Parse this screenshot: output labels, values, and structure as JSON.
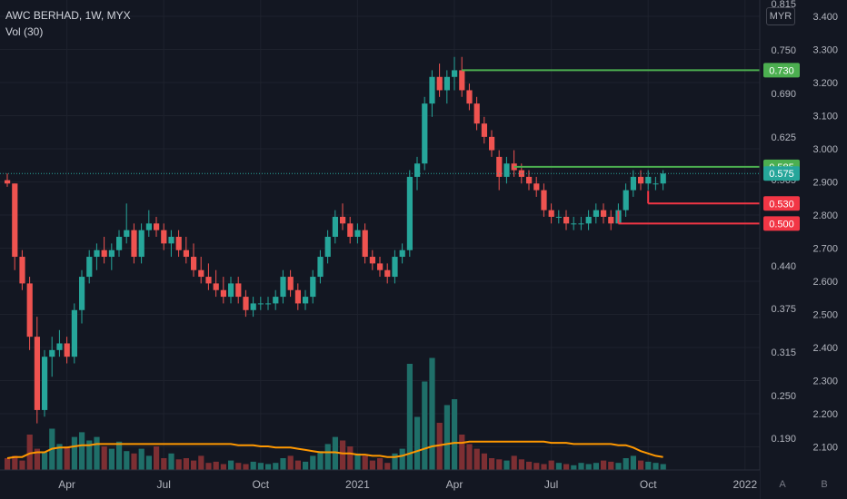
{
  "header": {
    "title": "AWC BERHAD, 1W, MYX",
    "indicator": "Vol (30)",
    "currency": "MYR"
  },
  "corner_buttons": {
    "auto": "A",
    "log": "B"
  },
  "colors": {
    "background": "#131722",
    "up": "#26a69a",
    "down": "#ef5350",
    "volume_up": "#1f6f69",
    "volume_down": "#7d2f33",
    "volume_ma": "#ff9800",
    "support": "#f23645",
    "resistance": "#4caf50",
    "last_price": "#26a69a"
  },
  "chart_data": {
    "type": "candlestick",
    "title": "AWC BERHAD, 1W, MYX",
    "x_tick_labels": [
      "Apr",
      "Jul",
      "Oct",
      "2021",
      "Apr",
      "Jul",
      "Oct",
      "2022"
    ],
    "x_tick_weeks": [
      8,
      21,
      34,
      47,
      60,
      73,
      86,
      99
    ],
    "right_axis_labels": [
      "3.400",
      "3.300",
      "3.200",
      "3.100",
      "3.000",
      "2.900",
      "2.800",
      "2.700",
      "2.600",
      "2.500",
      "2.400",
      "2.300",
      "2.200",
      "2.100"
    ],
    "left_axis_labels": [
      "0.815",
      "0.750",
      "0.690",
      "0.625",
      "0.565",
      "0.440",
      "0.375",
      "0.315",
      "0.250",
      "0.190"
    ],
    "ylim": [
      0.13,
      0.83
    ],
    "candles": [
      [
        0.565,
        0.575,
        0.555,
        0.56
      ],
      [
        0.56,
        0.56,
        0.43,
        0.45
      ],
      [
        0.45,
        0.46,
        0.4,
        0.41
      ],
      [
        0.41,
        0.42,
        0.31,
        0.33
      ],
      [
        0.33,
        0.36,
        0.2,
        0.22
      ],
      [
        0.22,
        0.31,
        0.21,
        0.3
      ],
      [
        0.3,
        0.33,
        0.27,
        0.31
      ],
      [
        0.31,
        0.34,
        0.3,
        0.32
      ],
      [
        0.32,
        0.33,
        0.29,
        0.3
      ],
      [
        0.3,
        0.38,
        0.29,
        0.37
      ],
      [
        0.37,
        0.43,
        0.35,
        0.42
      ],
      [
        0.42,
        0.46,
        0.41,
        0.45
      ],
      [
        0.45,
        0.47,
        0.43,
        0.46
      ],
      [
        0.46,
        0.48,
        0.44,
        0.45
      ],
      [
        0.45,
        0.47,
        0.43,
        0.46
      ],
      [
        0.46,
        0.49,
        0.45,
        0.48
      ],
      [
        0.48,
        0.53,
        0.47,
        0.49
      ],
      [
        0.49,
        0.5,
        0.44,
        0.45
      ],
      [
        0.45,
        0.5,
        0.44,
        0.49
      ],
      [
        0.49,
        0.52,
        0.48,
        0.5
      ],
      [
        0.5,
        0.51,
        0.48,
        0.49
      ],
      [
        0.49,
        0.5,
        0.46,
        0.47
      ],
      [
        0.47,
        0.49,
        0.45,
        0.48
      ],
      [
        0.48,
        0.49,
        0.45,
        0.46
      ],
      [
        0.46,
        0.48,
        0.44,
        0.45
      ],
      [
        0.45,
        0.47,
        0.42,
        0.43
      ],
      [
        0.43,
        0.45,
        0.41,
        0.42
      ],
      [
        0.42,
        0.44,
        0.4,
        0.41
      ],
      [
        0.41,
        0.43,
        0.39,
        0.4
      ],
      [
        0.4,
        0.42,
        0.38,
        0.39
      ],
      [
        0.39,
        0.42,
        0.38,
        0.41
      ],
      [
        0.41,
        0.42,
        0.38,
        0.39
      ],
      [
        0.39,
        0.4,
        0.36,
        0.37
      ],
      [
        0.37,
        0.39,
        0.36,
        0.38
      ],
      [
        0.38,
        0.39,
        0.37,
        0.38
      ],
      [
        0.38,
        0.39,
        0.37,
        0.38
      ],
      [
        0.38,
        0.4,
        0.37,
        0.39
      ],
      [
        0.39,
        0.43,
        0.38,
        0.42
      ],
      [
        0.42,
        0.43,
        0.39,
        0.4
      ],
      [
        0.4,
        0.41,
        0.37,
        0.38
      ],
      [
        0.38,
        0.4,
        0.37,
        0.39
      ],
      [
        0.39,
        0.43,
        0.38,
        0.42
      ],
      [
        0.42,
        0.46,
        0.41,
        0.45
      ],
      [
        0.45,
        0.49,
        0.44,
        0.48
      ],
      [
        0.48,
        0.52,
        0.47,
        0.51
      ],
      [
        0.51,
        0.53,
        0.49,
        0.5
      ],
      [
        0.5,
        0.51,
        0.47,
        0.48
      ],
      [
        0.48,
        0.5,
        0.47,
        0.49
      ],
      [
        0.49,
        0.5,
        0.44,
        0.45
      ],
      [
        0.45,
        0.46,
        0.43,
        0.44
      ],
      [
        0.44,
        0.45,
        0.42,
        0.43
      ],
      [
        0.43,
        0.44,
        0.41,
        0.42
      ],
      [
        0.42,
        0.46,
        0.41,
        0.45
      ],
      [
        0.45,
        0.47,
        0.44,
        0.46
      ],
      [
        0.46,
        0.58,
        0.45,
        0.57
      ],
      [
        0.57,
        0.6,
        0.55,
        0.59
      ],
      [
        0.59,
        0.69,
        0.58,
        0.68
      ],
      [
        0.68,
        0.73,
        0.66,
        0.72
      ],
      [
        0.72,
        0.74,
        0.69,
        0.7
      ],
      [
        0.7,
        0.73,
        0.68,
        0.72
      ],
      [
        0.72,
        0.75,
        0.7,
        0.73
      ],
      [
        0.73,
        0.75,
        0.69,
        0.7
      ],
      [
        0.7,
        0.71,
        0.67,
        0.68
      ],
      [
        0.68,
        0.69,
        0.64,
        0.65
      ],
      [
        0.65,
        0.66,
        0.62,
        0.63
      ],
      [
        0.63,
        0.64,
        0.6,
        0.61
      ],
      [
        0.6,
        0.61,
        0.55,
        0.57
      ],
      [
        0.57,
        0.6,
        0.56,
        0.59
      ],
      [
        0.59,
        0.61,
        0.57,
        0.58
      ],
      [
        0.58,
        0.59,
        0.56,
        0.57
      ],
      [
        0.57,
        0.58,
        0.55,
        0.56
      ],
      [
        0.56,
        0.57,
        0.54,
        0.55
      ],
      [
        0.55,
        0.56,
        0.51,
        0.52
      ],
      [
        0.52,
        0.53,
        0.5,
        0.51
      ],
      [
        0.51,
        0.52,
        0.5,
        0.51
      ],
      [
        0.51,
        0.52,
        0.49,
        0.5
      ],
      [
        0.5,
        0.51,
        0.49,
        0.5
      ],
      [
        0.5,
        0.51,
        0.49,
        0.5
      ],
      [
        0.5,
        0.52,
        0.49,
        0.51
      ],
      [
        0.51,
        0.53,
        0.5,
        0.52
      ],
      [
        0.52,
        0.53,
        0.5,
        0.51
      ],
      [
        0.51,
        0.52,
        0.49,
        0.5
      ],
      [
        0.5,
        0.53,
        0.5,
        0.52
      ],
      [
        0.52,
        0.56,
        0.51,
        0.55
      ],
      [
        0.55,
        0.58,
        0.54,
        0.57
      ],
      [
        0.57,
        0.58,
        0.55,
        0.56
      ],
      [
        0.56,
        0.58,
        0.55,
        0.57
      ],
      [
        0.56,
        0.57,
        0.55,
        0.56
      ],
      [
        0.56,
        0.58,
        0.55,
        0.575
      ]
    ],
    "volume": [
      0.1,
      0.12,
      0.08,
      0.3,
      0.18,
      0.15,
      0.35,
      0.22,
      0.2,
      0.28,
      0.32,
      0.25,
      0.28,
      0.2,
      0.18,
      0.24,
      0.16,
      0.14,
      0.18,
      0.12,
      0.2,
      0.1,
      0.14,
      0.09,
      0.1,
      0.08,
      0.12,
      0.06,
      0.07,
      0.05,
      0.08,
      0.06,
      0.05,
      0.07,
      0.06,
      0.05,
      0.06,
      0.1,
      0.12,
      0.08,
      0.07,
      0.12,
      0.16,
      0.22,
      0.28,
      0.25,
      0.2,
      0.14,
      0.12,
      0.08,
      0.1,
      0.06,
      0.14,
      0.18,
      0.9,
      0.45,
      0.75,
      0.95,
      0.4,
      0.55,
      0.6,
      0.3,
      0.22,
      0.18,
      0.14,
      0.1,
      0.09,
      0.08,
      0.12,
      0.09,
      0.07,
      0.06,
      0.05,
      0.08,
      0.06,
      0.05,
      0.04,
      0.06,
      0.05,
      0.06,
      0.08,
      0.07,
      0.06,
      0.1,
      0.12,
      0.08,
      0.07,
      0.06,
      0.05
    ],
    "volume_ma": [
      0.1,
      0.11,
      0.11,
      0.14,
      0.15,
      0.15,
      0.18,
      0.19,
      0.19,
      0.2,
      0.21,
      0.21,
      0.22,
      0.22,
      0.22,
      0.22,
      0.22,
      0.22,
      0.22,
      0.22,
      0.22,
      0.22,
      0.22,
      0.22,
      0.22,
      0.22,
      0.22,
      0.22,
      0.22,
      0.22,
      0.22,
      0.21,
      0.21,
      0.21,
      0.2,
      0.2,
      0.19,
      0.19,
      0.19,
      0.18,
      0.17,
      0.16,
      0.15,
      0.15,
      0.15,
      0.14,
      0.14,
      0.13,
      0.13,
      0.12,
      0.12,
      0.11,
      0.11,
      0.12,
      0.14,
      0.16,
      0.18,
      0.2,
      0.21,
      0.22,
      0.23,
      0.23,
      0.24,
      0.24,
      0.24,
      0.24,
      0.24,
      0.24,
      0.24,
      0.24,
      0.24,
      0.24,
      0.24,
      0.23,
      0.23,
      0.23,
      0.22,
      0.22,
      0.22,
      0.22,
      0.22,
      0.22,
      0.21,
      0.21,
      0.19,
      0.16,
      0.14,
      0.12,
      0.11
    ],
    "horizontal_levels": [
      {
        "value": 0.73,
        "label": "0.730",
        "start_week": 61,
        "kind": "resistance"
      },
      {
        "value": 0.585,
        "label": "0.585",
        "start_week": 68,
        "kind": "resistance"
      },
      {
        "value": 0.575,
        "label": "0.575",
        "start_week": 0,
        "kind": "last"
      },
      {
        "value": 0.53,
        "label": "0.530",
        "start_week": 86,
        "kind": "support"
      },
      {
        "value": 0.5,
        "label": "0.500",
        "start_week": 82,
        "kind": "support"
      }
    ]
  }
}
